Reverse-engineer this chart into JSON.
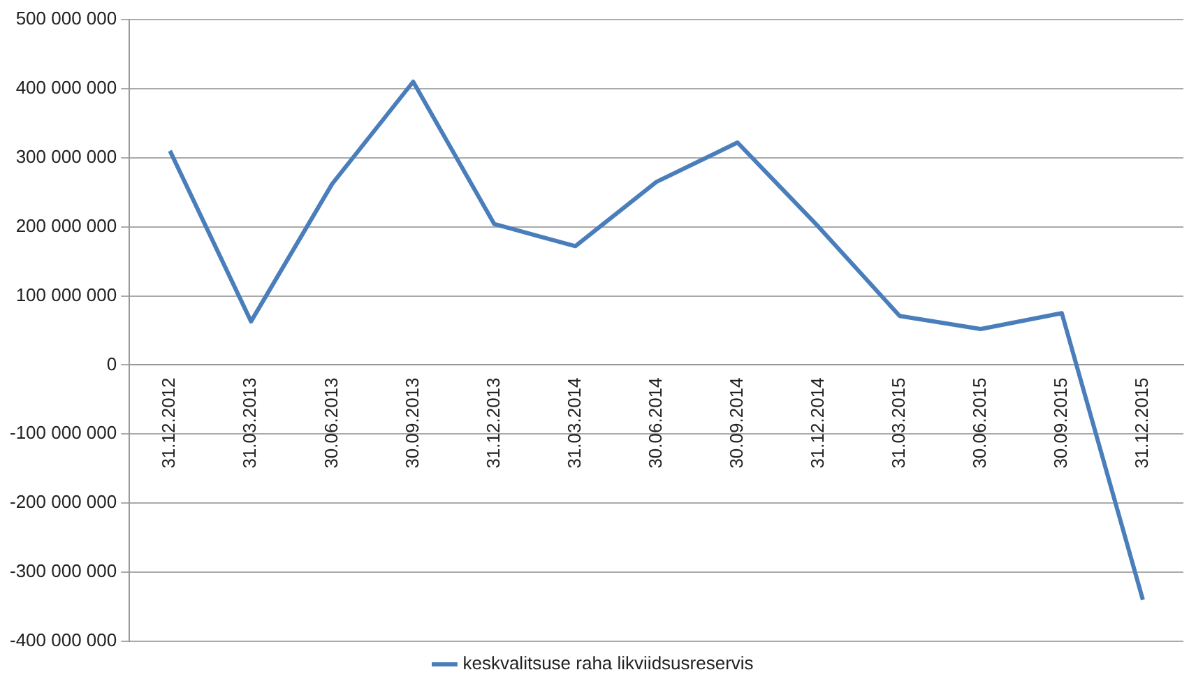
{
  "chart_data": {
    "type": "line",
    "categories": [
      "31.12.2012",
      "31.03.2013",
      "30.06.2013",
      "30.09.2013",
      "31.12.2013",
      "31.03.2014",
      "30.06.2014",
      "30.09.2014",
      "31.12.2014",
      "31.03.2015",
      "30.06.2015",
      "30.09.2015",
      "31.12.2015"
    ],
    "series": [
      {
        "name": "keskvalitsuse raha likviidsusreservis",
        "color": "#4a7ebb",
        "values": [
          310000000,
          63000000,
          262000000,
          410000000,
          204000000,
          172000000,
          265000000,
          322000000,
          200000000,
          71000000,
          52000000,
          75000000,
          -340000000
        ]
      }
    ],
    "ylim": [
      -400000000,
      500000000
    ],
    "yticks": [
      {
        "value": -400000000,
        "label": "-400 000 000"
      },
      {
        "value": -300000000,
        "label": "-300 000 000"
      },
      {
        "value": -200000000,
        "label": "-200 000 000"
      },
      {
        "value": -100000000,
        "label": "-100 000 000"
      },
      {
        "value": 0,
        "label": "0"
      },
      {
        "value": 100000000,
        "label": "100 000 000"
      },
      {
        "value": 200000000,
        "label": "200 000 000"
      },
      {
        "value": 300000000,
        "label": "300 000 000"
      },
      {
        "value": 400000000,
        "label": "400 000 000"
      },
      {
        "value": 500000000,
        "label": "500 000 000"
      }
    ],
    "grid": "y",
    "legend": "bottom",
    "marker": "none",
    "line_style": "solid"
  }
}
